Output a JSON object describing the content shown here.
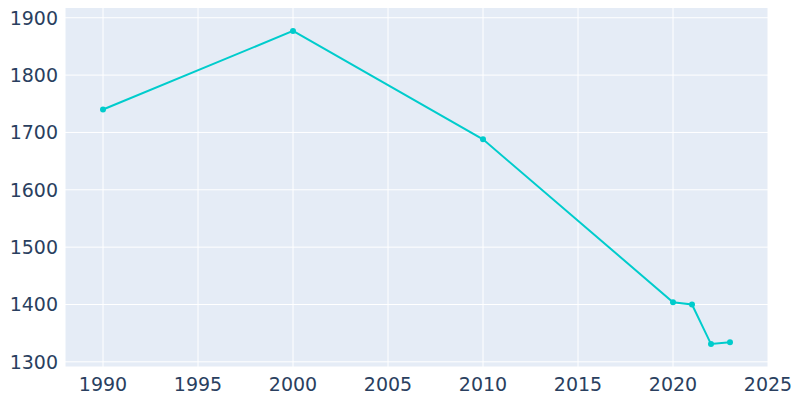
{
  "chart_data": {
    "type": "line",
    "x": [
      1990,
      2000,
      2010,
      2020,
      2021,
      2022,
      2023
    ],
    "values": [
      1740,
      1877,
      1688,
      1404,
      1400,
      1331,
      1334
    ],
    "color": "#00cccc",
    "marker": "circle",
    "xlim": [
      1988,
      2025
    ],
    "ylim": [
      1291,
      1917
    ],
    "xticks": [
      1990,
      1995,
      2000,
      2005,
      2010,
      2015,
      2020,
      2025
    ],
    "yticks": [
      1300,
      1400,
      1500,
      1600,
      1700,
      1800,
      1900
    ],
    "grid": true
  }
}
